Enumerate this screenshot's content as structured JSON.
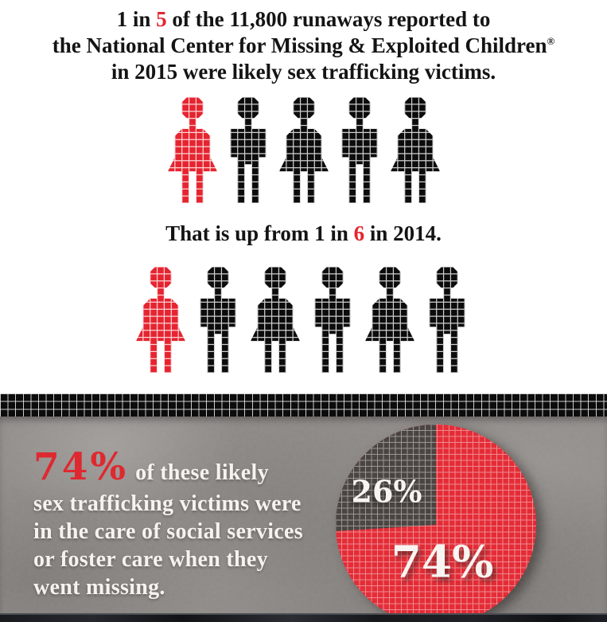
{
  "colors": {
    "accent_red": "#e62430",
    "figure_black": "#0c0c0c",
    "pie_red": "#e62530",
    "pie_gray": "#453f3c",
    "section_bg": "#8f8b88",
    "band_black": "#0c0c0c",
    "text_white": "#f8f5f2"
  },
  "header": {
    "line1_prefix": "1 in ",
    "line1_accent": "5",
    "line1_suffix": " of the 11,800 runaways reported to",
    "line2": "the National Center for Missing & Exploited Children",
    "line2_reg": "®",
    "line3": "in 2015 were likely sex trafficking victims."
  },
  "subheader": {
    "prefix": "That is up from 1 in ",
    "accent": "6",
    "suffix": " in 2014."
  },
  "pictographs": [
    {
      "name": "ratio-2015",
      "genders": [
        "female",
        "male",
        "female",
        "male",
        "female"
      ],
      "highlight_index": 0
    },
    {
      "name": "ratio-2014",
      "genders": [
        "female",
        "male",
        "female",
        "male",
        "female",
        "male"
      ],
      "highlight_index": 0
    }
  ],
  "stat": {
    "value": "74%",
    "lines": [
      "of these likely",
      "sex trafficking victims were",
      "in the care of social services",
      "or foster care when they",
      "went missing."
    ]
  },
  "pie": {
    "major_label": "74%",
    "minor_label": "26%"
  },
  "chart_data": [
    {
      "type": "pictograph",
      "year": 2015,
      "statistic": "1 in 5",
      "reported_runaways": 11800,
      "icons_total": 5,
      "icons_highlighted": 1,
      "title": "1 in 5 of the 11,800 runaways reported to the National Center for Missing & Exploited Children® in 2015 were likely sex trafficking victims."
    },
    {
      "type": "pictograph",
      "year": 2014,
      "statistic": "1 in 6",
      "icons_total": 6,
      "icons_highlighted": 1,
      "title": "That is up from 1 in 6 in 2014."
    },
    {
      "type": "pie",
      "labels": [
        "74%",
        "26%"
      ],
      "values": [
        74,
        26
      ],
      "colors": [
        "#e62530",
        "#453f3c"
      ],
      "legend_position": "none",
      "title": "74% of these likely sex trafficking victims were in the care of social services or foster care when they went missing."
    }
  ]
}
